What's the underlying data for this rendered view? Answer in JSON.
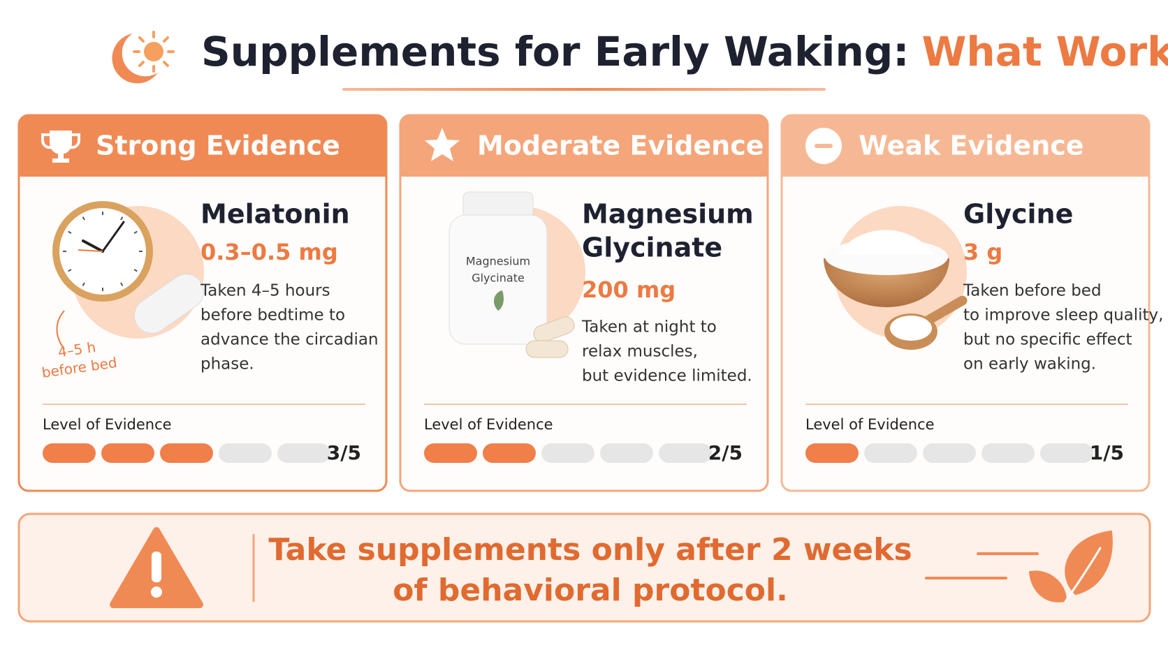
{
  "header": {
    "title_main": "Supplements for Early Waking:",
    "title_accent": "What Works?"
  },
  "cards": [
    {
      "tier": "Strong Evidence",
      "name": [
        "Melatonin"
      ],
      "dose": "0.3–0.5 mg",
      "description": [
        "Taken 4–5 hours",
        "before bedtime to",
        "advance the circadian",
        "phase."
      ],
      "annotation": [
        "4–5 h",
        "before bed"
      ],
      "level_label": "Level of Evidence",
      "score": {
        "value": 3,
        "max": 5,
        "label": "3/5"
      }
    },
    {
      "tier": "Moderate Evidence",
      "name": [
        "Magnesium",
        "Glycinate"
      ],
      "dose": "200 mg",
      "description": [
        "Taken at night to",
        "relax muscles,",
        "but evidence limited."
      ],
      "bottle_label": [
        "Magnesium",
        "Glycinate"
      ],
      "level_label": "Level of Evidence",
      "score": {
        "value": 2,
        "max": 5,
        "label": "2/5"
      }
    },
    {
      "tier": "Weak Evidence",
      "name": [
        "Glycine"
      ],
      "dose": "3 g",
      "description": [
        "Taken before bed",
        "to improve sleep quality,",
        "but no specific effect",
        "on early waking."
      ],
      "level_label": "Level of Evidence",
      "score": {
        "value": 1,
        "max": 5,
        "label": "1/5"
      }
    }
  ],
  "footer": {
    "message": [
      "Take supplements only after 2 weeks",
      "of behavioral protocol."
    ]
  }
}
